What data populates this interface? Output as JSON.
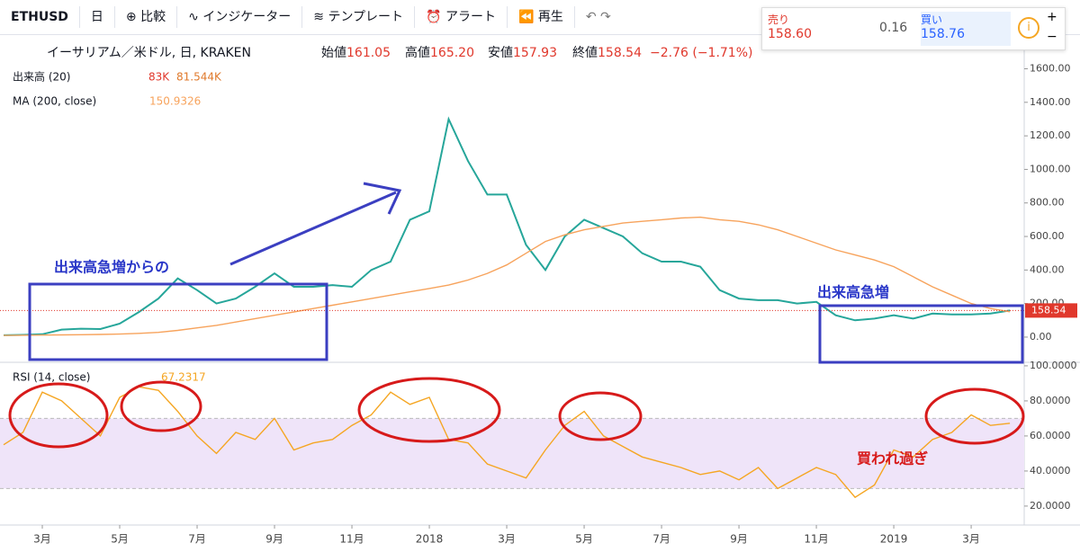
{
  "toolbar": {
    "symbol": "ETHUSD",
    "interval": "日",
    "items": [
      "比較",
      "インジケーター",
      "テンプレート",
      "アラート",
      "再生"
    ]
  },
  "quote": {
    "sell_label": "売り",
    "sell": "158.60",
    "spread": "0.16",
    "buy_label": "買い",
    "buy": "158.76"
  },
  "legend": {
    "name": "イーサリアム／米ドル, 日, KRAKEN",
    "open_label": "始値",
    "open": "161.05",
    "high_label": "高値",
    "high": "165.20",
    "low_label": "安値",
    "low": "157.93",
    "close_label": "終値",
    "close": "158.54",
    "change": "−2.76 (−1.71%)",
    "volume_label": "出来高 (20)",
    "volume": "83K",
    "volume_ma": "81.544K"
  },
  "annotations": {
    "left": "出来高急増からの",
    "right": "出来高急増",
    "rsi": "買われ過ぎ"
  },
  "chart_data": [
    {
      "type": "line",
      "x": [
        0,
        0.5,
        1,
        1.5,
        2,
        2.5,
        3,
        3.5,
        4,
        4.5,
        5,
        5.5,
        6,
        6.5,
        7,
        7.5,
        8,
        8.5,
        9,
        9.5,
        10,
        10.5,
        11,
        11.5,
        12,
        12.5,
        13,
        13.5,
        14,
        14.5,
        15,
        15.5,
        16,
        16.5,
        17,
        17.5,
        18,
        18.5,
        19,
        19.5,
        20,
        20.5,
        21,
        21.5,
        22,
        22.5,
        23,
        23.5,
        24,
        24.5,
        25,
        25.5,
        26
      ],
      "xlim": [
        0,
        26.37
      ],
      "xticks": [
        {
          "value": 1,
          "label": "3月"
        },
        {
          "value": 3,
          "label": "5月"
        },
        {
          "value": 5,
          "label": "7月"
        },
        {
          "value": 7,
          "label": "9月"
        },
        {
          "value": 9,
          "label": "11月"
        },
        {
          "value": 11,
          "label": "2018"
        },
        {
          "value": 13,
          "label": "3月"
        },
        {
          "value": 15,
          "label": "5月"
        },
        {
          "value": 17,
          "label": "7月"
        },
        {
          "value": 19,
          "label": "9月"
        },
        {
          "value": 21,
          "label": "11月"
        },
        {
          "value": 23,
          "label": "2019"
        },
        {
          "value": 25,
          "label": "3月"
        }
      ],
      "ylim": [
        -145,
        1785
      ],
      "yticks": [
        {
          "value": 1600,
          "label": "1600.00"
        },
        {
          "value": 1400,
          "label": "1400.00"
        },
        {
          "value": 1200,
          "label": "1200.00"
        },
        {
          "value": 1000,
          "label": "1000.00"
        },
        {
          "value": 800,
          "label": "800.00"
        },
        {
          "value": 600,
          "label": "600.00"
        },
        {
          "value": 400,
          "label": "400.00"
        },
        {
          "value": 200,
          "label": "200.00"
        },
        {
          "value": 0,
          "label": "0.00"
        }
      ],
      "series": [
        {
          "color": "#26a69a",
          "values": [
            11,
            13,
            17,
            45,
            50,
            48,
            80,
            150,
            230,
            350,
            280,
            200,
            230,
            300,
            380,
            300,
            300,
            310,
            300,
            400,
            450,
            700,
            750,
            1300,
            1050,
            850,
            850,
            550,
            400,
            600,
            700,
            650,
            600,
            500,
            450,
            450,
            420,
            280,
            230,
            220,
            220,
            200,
            210,
            130,
            100,
            110,
            130,
            110,
            140,
            135,
            135,
            140,
            158.54
          ]
        },
        {
          "name": "MA (200, close)",
          "color": "#f7a35c",
          "value_label": "150.9326",
          "values": [
            10,
            11,
            12,
            13,
            14,
            16,
            18,
            22,
            28,
            40,
            55,
            70,
            90,
            110,
            130,
            150,
            170,
            190,
            210,
            230,
            250,
            270,
            290,
            310,
            340,
            380,
            430,
            500,
            570,
            610,
            640,
            660,
            680,
            690,
            700,
            710,
            715,
            700,
            690,
            670,
            640,
            600,
            560,
            520,
            490,
            460,
            420,
            360,
            300,
            250,
            200,
            170,
            150.9326
          ]
        }
      ]
    },
    {
      "type": "line",
      "ylim": [
        9.7,
        101.5
      ],
      "yticks": [
        {
          "value": 100,
          "label": "100.0000"
        },
        {
          "value": 80,
          "label": "80.0000"
        },
        {
          "value": 60,
          "label": "60.0000"
        },
        {
          "value": 40,
          "label": "40.0000"
        },
        {
          "value": 20,
          "label": "20.0000"
        }
      ],
      "band": [
        30,
        70
      ],
      "series": [
        {
          "name": "RSI (14, close)",
          "color": "#f5a623",
          "value_label": "67.2317",
          "values": [
            55,
            62,
            85,
            80,
            70,
            60,
            82,
            88,
            86,
            74,
            60,
            50,
            62,
            58,
            70,
            52,
            56,
            58,
            66,
            72,
            85,
            78,
            82,
            58,
            56,
            44,
            40,
            36,
            52,
            66,
            74,
            60,
            54,
            48,
            45,
            42,
            38,
            40,
            35,
            42,
            30,
            36,
            42,
            38,
            25,
            32,
            52,
            48,
            58,
            62,
            72,
            66,
            67.2317
          ]
        }
      ]
    }
  ]
}
